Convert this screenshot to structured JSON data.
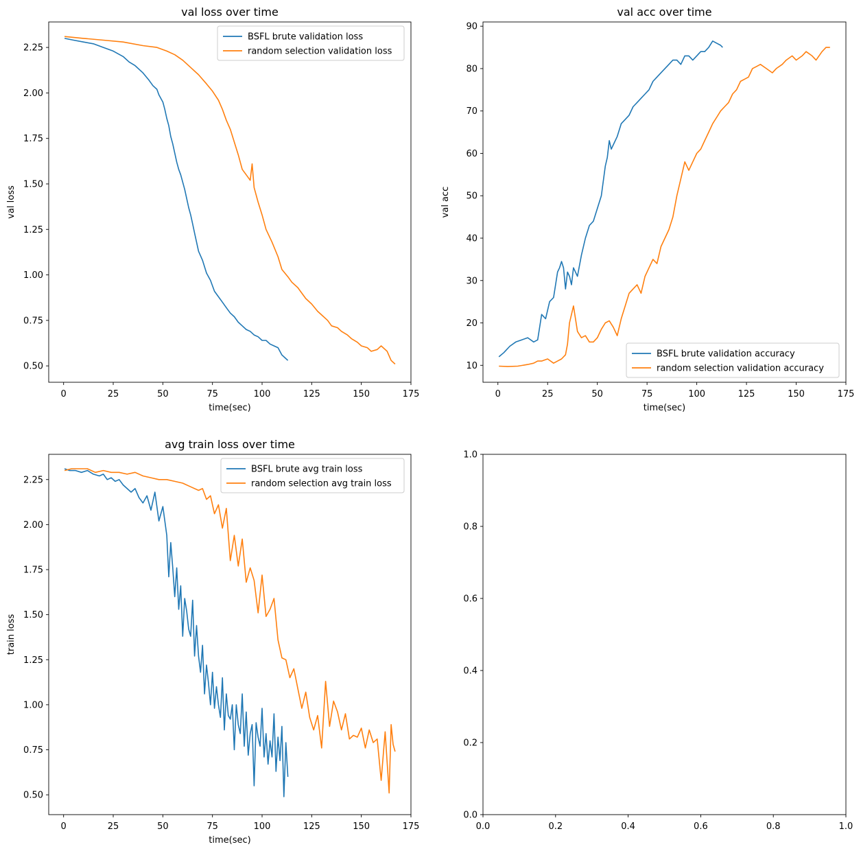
{
  "colors": {
    "blue": "#1f77b4",
    "orange": "#ff7f0e"
  },
  "chart_data": [
    {
      "type": "line",
      "title": "val loss over time",
      "xlabel": "time(sec)",
      "ylabel": "val loss",
      "xlim": [
        -7.5,
        175
      ],
      "ylim": [
        0.41,
        2.39
      ],
      "xticks": [
        0,
        25,
        50,
        75,
        100,
        125,
        150,
        175
      ],
      "yticks": [
        0.5,
        0.75,
        1.0,
        1.25,
        1.5,
        1.75,
        2.0,
        2.25
      ],
      "ytick_decimals": 2,
      "grid": false,
      "legend": "top-right",
      "series": [
        {
          "name": "BSFL brute validation loss",
          "color": "#1f77b4",
          "x": [
            0.5,
            5,
            10,
            15,
            20,
            25,
            30,
            33,
            36,
            40,
            43,
            45,
            47,
            48,
            50,
            51,
            52,
            53,
            54,
            55,
            56,
            57,
            58,
            59,
            60,
            61,
            62,
            63,
            64,
            65,
            66,
            67,
            68,
            70,
            72,
            74,
            75,
            76,
            78,
            80,
            82,
            84,
            86,
            88,
            90,
            92,
            94,
            96,
            98,
            100,
            102,
            104,
            106,
            108,
            110,
            112,
            113
          ],
          "y": [
            2.3,
            2.29,
            2.28,
            2.27,
            2.25,
            2.23,
            2.2,
            2.17,
            2.15,
            2.11,
            2.07,
            2.04,
            2.02,
            1.99,
            1.95,
            1.91,
            1.86,
            1.82,
            1.76,
            1.72,
            1.67,
            1.62,
            1.58,
            1.55,
            1.51,
            1.47,
            1.42,
            1.37,
            1.33,
            1.28,
            1.23,
            1.18,
            1.13,
            1.08,
            1.01,
            0.97,
            0.94,
            0.91,
            0.88,
            0.85,
            0.82,
            0.79,
            0.77,
            0.74,
            0.72,
            0.7,
            0.69,
            0.67,
            0.66,
            0.64,
            0.64,
            0.62,
            0.61,
            0.6,
            0.56,
            0.54,
            0.53
          ]
        },
        {
          "name": "random selection validation loss",
          "color": "#ff7f0e",
          "x": [
            0.5,
            10,
            20,
            30,
            40,
            47,
            52,
            56,
            60,
            64,
            68,
            72,
            75,
            78,
            80,
            82,
            84,
            86,
            88,
            90,
            92,
            94,
            95,
            96,
            98,
            100,
            102,
            105,
            108,
            110,
            113,
            115,
            118,
            120,
            122,
            125,
            128,
            130,
            133,
            135,
            138,
            140,
            143,
            145,
            148,
            150,
            153,
            155,
            158,
            160,
            163,
            165,
            167
          ],
          "y": [
            2.31,
            2.3,
            2.29,
            2.28,
            2.26,
            2.25,
            2.23,
            2.21,
            2.18,
            2.14,
            2.1,
            2.05,
            2.01,
            1.96,
            1.91,
            1.85,
            1.8,
            1.73,
            1.66,
            1.58,
            1.55,
            1.52,
            1.61,
            1.48,
            1.4,
            1.33,
            1.25,
            1.18,
            1.1,
            1.03,
            0.99,
            0.96,
            0.93,
            0.9,
            0.87,
            0.84,
            0.8,
            0.78,
            0.75,
            0.72,
            0.71,
            0.69,
            0.67,
            0.65,
            0.63,
            0.61,
            0.6,
            0.58,
            0.59,
            0.61,
            0.58,
            0.53,
            0.51
          ]
        }
      ]
    },
    {
      "type": "line",
      "title": "val acc over time",
      "xlabel": "time(sec)",
      "ylabel": "val acc",
      "xlim": [
        -7.5,
        175
      ],
      "ylim": [
        6,
        91
      ],
      "xticks": [
        0,
        25,
        50,
        75,
        100,
        125,
        150,
        175
      ],
      "yticks": [
        10,
        20,
        30,
        40,
        50,
        60,
        70,
        80,
        90
      ],
      "ytick_decimals": 0,
      "grid": false,
      "legend": "bottom-right",
      "series": [
        {
          "name": "BSFL brute validation accuracy",
          "color": "#1f77b4",
          "x": [
            0.5,
            3,
            6,
            9,
            12,
            15,
            18,
            20,
            22,
            24,
            26,
            28,
            30,
            31,
            32,
            33,
            34,
            35,
            36,
            37,
            38,
            40,
            42,
            44,
            46,
            48,
            50,
            52,
            54,
            55,
            56,
            57,
            58,
            60,
            62,
            64,
            66,
            68,
            70,
            72,
            74,
            76,
            78,
            80,
            82,
            84,
            86,
            88,
            90,
            92,
            94,
            96,
            98,
            100,
            102,
            104,
            106,
            108,
            110,
            112,
            113
          ],
          "y": [
            12,
            13,
            14.5,
            15.5,
            16,
            16.5,
            15.5,
            16,
            22,
            21,
            25,
            26,
            32,
            33,
            34.5,
            33,
            28,
            32,
            31,
            29,
            33,
            31,
            36,
            40,
            43,
            44,
            47,
            50,
            57,
            59,
            63,
            61,
            62,
            64,
            67,
            68,
            69,
            71,
            72,
            73,
            74,
            75,
            77,
            78,
            79,
            80,
            81,
            82,
            82,
            81,
            83,
            83,
            82,
            83,
            84,
            84,
            85,
            86.5,
            86,
            85.5,
            85
          ]
        },
        {
          "name": "random selection validation accuracy",
          "color": "#ff7f0e",
          "x": [
            0.5,
            5,
            10,
            15,
            18,
            20,
            22,
            25,
            28,
            30,
            32,
            34,
            35,
            36,
            37,
            38,
            39,
            40,
            42,
            44,
            46,
            48,
            50,
            52,
            54,
            56,
            58,
            60,
            62,
            64,
            66,
            68,
            70,
            72,
            74,
            76,
            78,
            80,
            82,
            84,
            86,
            88,
            90,
            92,
            94,
            96,
            98,
            100,
            102,
            104,
            106,
            108,
            110,
            112,
            114,
            116,
            118,
            120,
            122,
            124,
            126,
            128,
            130,
            132,
            135,
            138,
            140,
            143,
            145,
            148,
            150,
            153,
            155,
            158,
            160,
            163,
            165,
            167
          ],
          "y": [
            9.8,
            9.7,
            9.8,
            10.2,
            10.5,
            11,
            11,
            11.5,
            10.5,
            11,
            11.5,
            12.5,
            15,
            20,
            22,
            24,
            21,
            18,
            16.5,
            17,
            15.5,
            15.5,
            16.5,
            18.5,
            20,
            20.5,
            19,
            17,
            21,
            24,
            27,
            28,
            29,
            27,
            31,
            33,
            35,
            34,
            38,
            40,
            42,
            45,
            50,
            54,
            58,
            56,
            58,
            60,
            61,
            63,
            65,
            67,
            68.5,
            70,
            71,
            72,
            74,
            75,
            77,
            77.5,
            78,
            80,
            80.5,
            81,
            80,
            79,
            80,
            81,
            82,
            83,
            82,
            83,
            84,
            83,
            82,
            84,
            85,
            85
          ]
        }
      ]
    },
    {
      "type": "line",
      "title": "avg train loss over time",
      "xlabel": "time(sec)",
      "ylabel": "train loss",
      "xlim": [
        -7.5,
        175
      ],
      "ylim": [
        0.39,
        2.39
      ],
      "xticks": [
        0,
        25,
        50,
        75,
        100,
        125,
        150,
        175
      ],
      "yticks": [
        0.5,
        0.75,
        1.0,
        1.25,
        1.5,
        1.75,
        2.0,
        2.25
      ],
      "ytick_decimals": 2,
      "grid": false,
      "legend": "top-right",
      "series": [
        {
          "name": "BSFL brute avg train loss",
          "color": "#1f77b4",
          "x": [
            0.5,
            3,
            6,
            9,
            12,
            15,
            18,
            20,
            22,
            24,
            26,
            28,
            30,
            32,
            34,
            36,
            38,
            40,
            42,
            44,
            46,
            48,
            50,
            52,
            53,
            54,
            55,
            56,
            57,
            58,
            59,
            60,
            61,
            62,
            63,
            64,
            65,
            66,
            67,
            68,
            69,
            70,
            71,
            72,
            73,
            74,
            75,
            76,
            77,
            78,
            79,
            80,
            81,
            82,
            83,
            84,
            85,
            86,
            87,
            88,
            89,
            90,
            91,
            92,
            93,
            94,
            95,
            96,
            97,
            98,
            99,
            100,
            101,
            102,
            103,
            104,
            105,
            106,
            107,
            108,
            109,
            110,
            111,
            112,
            113
          ],
          "y": [
            2.31,
            2.3,
            2.3,
            2.29,
            2.3,
            2.28,
            2.27,
            2.28,
            2.25,
            2.26,
            2.24,
            2.25,
            2.22,
            2.2,
            2.18,
            2.2,
            2.15,
            2.12,
            2.16,
            2.08,
            2.18,
            2.02,
            2.1,
            1.94,
            1.71,
            1.9,
            1.76,
            1.6,
            1.76,
            1.53,
            1.66,
            1.38,
            1.59,
            1.52,
            1.42,
            1.38,
            1.58,
            1.27,
            1.44,
            1.27,
            1.18,
            1.33,
            1.06,
            1.22,
            1.12,
            1.0,
            1.18,
            0.98,
            1.1,
            1.0,
            0.93,
            1.15,
            0.86,
            1.06,
            0.94,
            0.92,
            1.0,
            0.75,
            1.0,
            0.89,
            0.84,
            1.06,
            0.77,
            0.96,
            0.72,
            0.84,
            0.89,
            0.55,
            0.9,
            0.82,
            0.77,
            0.98,
            0.71,
            0.84,
            0.67,
            0.8,
            0.71,
            0.95,
            0.63,
            0.82,
            0.69,
            0.88,
            0.49,
            0.79,
            0.6
          ]
        },
        {
          "name": "random selection avg train loss",
          "color": "#ff7f0e",
          "x": [
            0.5,
            4,
            8,
            12,
            16,
            20,
            24,
            28,
            32,
            36,
            40,
            44,
            48,
            52,
            56,
            60,
            64,
            68,
            70,
            72,
            74,
            76,
            78,
            80,
            82,
            84,
            86,
            88,
            90,
            92,
            94,
            96,
            98,
            100,
            102,
            104,
            106,
            108,
            110,
            112,
            114,
            116,
            118,
            120,
            122,
            124,
            126,
            128,
            130,
            132,
            134,
            136,
            138,
            140,
            142,
            144,
            146,
            148,
            150,
            152,
            154,
            156,
            158,
            160,
            162,
            164,
            165,
            166,
            167
          ],
          "y": [
            2.3,
            2.31,
            2.31,
            2.31,
            2.29,
            2.3,
            2.29,
            2.29,
            2.28,
            2.29,
            2.27,
            2.26,
            2.25,
            2.25,
            2.24,
            2.23,
            2.21,
            2.19,
            2.2,
            2.14,
            2.16,
            2.06,
            2.11,
            1.98,
            2.09,
            1.8,
            1.94,
            1.77,
            1.92,
            1.68,
            1.76,
            1.69,
            1.51,
            1.72,
            1.49,
            1.53,
            1.59,
            1.36,
            1.26,
            1.25,
            1.15,
            1.2,
            1.09,
            0.98,
            1.07,
            0.93,
            0.86,
            0.94,
            0.76,
            1.13,
            0.88,
            1.02,
            0.96,
            0.86,
            0.95,
            0.81,
            0.83,
            0.82,
            0.87,
            0.76,
            0.86,
            0.79,
            0.81,
            0.58,
            0.85,
            0.51,
            0.89,
            0.78,
            0.74
          ]
        }
      ]
    },
    {
      "type": "line",
      "title": "",
      "xlabel": "",
      "ylabel": "",
      "xlim": [
        0,
        1
      ],
      "ylim": [
        0,
        1
      ],
      "xticks": [
        0,
        0.2,
        0.4,
        0.6,
        0.8,
        1.0
      ],
      "yticks": [
        0,
        0.2,
        0.4,
        0.6,
        0.8,
        1.0
      ],
      "xtick_decimals": 1,
      "ytick_decimals": 1,
      "grid": false,
      "legend": "none",
      "series": []
    }
  ]
}
